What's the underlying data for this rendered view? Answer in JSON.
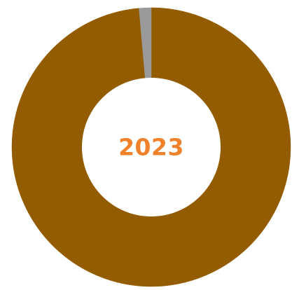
{
  "chart_data": {
    "type": "pie",
    "title": "",
    "center_label": "2023",
    "series": [
      {
        "values": [
          98.6,
          1.4
        ]
      }
    ],
    "slice_colors": [
      "#945c00",
      "#9a9a9a"
    ],
    "legend": "none"
  },
  "colors": {
    "center_label": "#f0822c",
    "background": "#ffffff",
    "hole": "#ffffff"
  }
}
